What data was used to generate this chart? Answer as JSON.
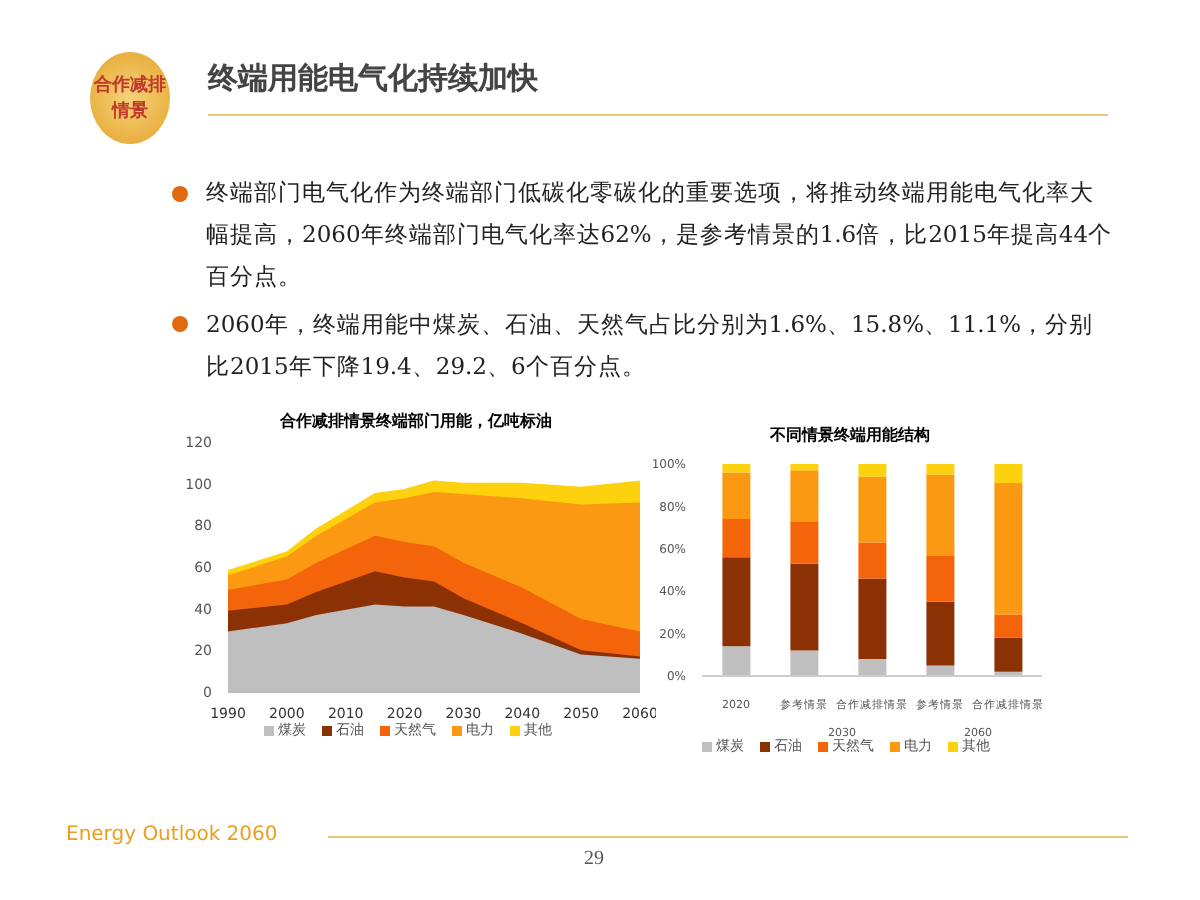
{
  "chart_data": [
    {
      "type": "other",
      "title": "终端用能电气化持续加快",
      "annotations": [
        "合作减排情景",
        "终端部门电气化作为终端部门低碳化零碳化的重要选项，将推动终端用能电气化率大幅提高，2060年终端部门电气化率达62%，是参考情景的1.6倍，比2015年提高44个百分点。",
        "2060年，终端用能中煤炭、石油、天然气占比分别为1.6%、15.8%、11.1%，分别比2015年下降19.4、29.2、6个百分点。",
        "Energy Outlook 2060",
        "29"
      ]
    },
    {
      "type": "area",
      "stacked": true,
      "title": "合作减排情景终端部门用能，亿吨标油",
      "x": [
        1990,
        2000,
        2005,
        2015,
        2020,
        2025,
        2030,
        2040,
        2050,
        2060
      ],
      "xlim": [
        1990,
        2060
      ],
      "xticks": [
        1990,
        2000,
        2010,
        2020,
        2030,
        2040,
        2050,
        2060
      ],
      "ylim": [
        0,
        120
      ],
      "yticks": [
        0,
        20,
        40,
        60,
        80,
        100,
        120
      ],
      "legend": "bottom",
      "grid": false,
      "series": [
        {
          "name": "煤炭",
          "color": "#bfbfbf",
          "values": [
            29,
            33,
            37,
            42,
            41,
            41,
            37,
            28,
            18,
            16
          ]
        },
        {
          "name": "石油",
          "color": "#8b3103",
          "values": [
            10,
            9,
            11,
            16,
            14,
            12,
            8,
            5,
            2,
            1
          ]
        },
        {
          "name": "天然气",
          "color": "#f4640b",
          "values": [
            10,
            12,
            14,
            17,
            17,
            17,
            17,
            17,
            15,
            12
          ]
        },
        {
          "name": "电力",
          "color": "#fb9a12",
          "values": [
            7,
            11,
            13,
            16,
            21,
            26,
            33,
            43,
            55,
            62
          ]
        },
        {
          "name": "其他",
          "color": "#fdd10d",
          "values": [
            2,
            2,
            3,
            4,
            4,
            5,
            5,
            7,
            8,
            10
          ]
        }
      ]
    },
    {
      "type": "bar",
      "stacked": true,
      "title": "不同情景终端用能结构",
      "categories": [
        "2020",
        "参考情景",
        "合作减排情景",
        "参考情景",
        "合作减排情景"
      ],
      "ylim": [
        0,
        100
      ],
      "yticks": [
        {
          "value": 0,
          "label": "0%"
        },
        {
          "value": 20,
          "label": "20%"
        },
        {
          "value": 40,
          "label": "40%"
        },
        {
          "value": 60,
          "label": "60%"
        },
        {
          "value": 80,
          "label": "80%"
        },
        {
          "value": 100,
          "label": "100%"
        }
      ],
      "legend": "bottom",
      "grid": false,
      "annotations": [
        "2030",
        "2060"
      ],
      "series": [
        {
          "name": "煤炭",
          "color": "#bfbfbf",
          "values": [
            14,
            12,
            8,
            5,
            2
          ]
        },
        {
          "name": "石油",
          "color": "#8b3103",
          "values": [
            42,
            41,
            38,
            30,
            16
          ]
        },
        {
          "name": "天然气",
          "color": "#f4640b",
          "values": [
            18,
            20,
            17,
            22,
            11
          ]
        },
        {
          "name": "电力",
          "color": "#fb9a12",
          "values": [
            22,
            24,
            31,
            38,
            62
          ]
        },
        {
          "name": "其他",
          "color": "#fdd10d",
          "values": [
            4,
            3,
            6,
            5,
            9
          ]
        }
      ]
    }
  ]
}
